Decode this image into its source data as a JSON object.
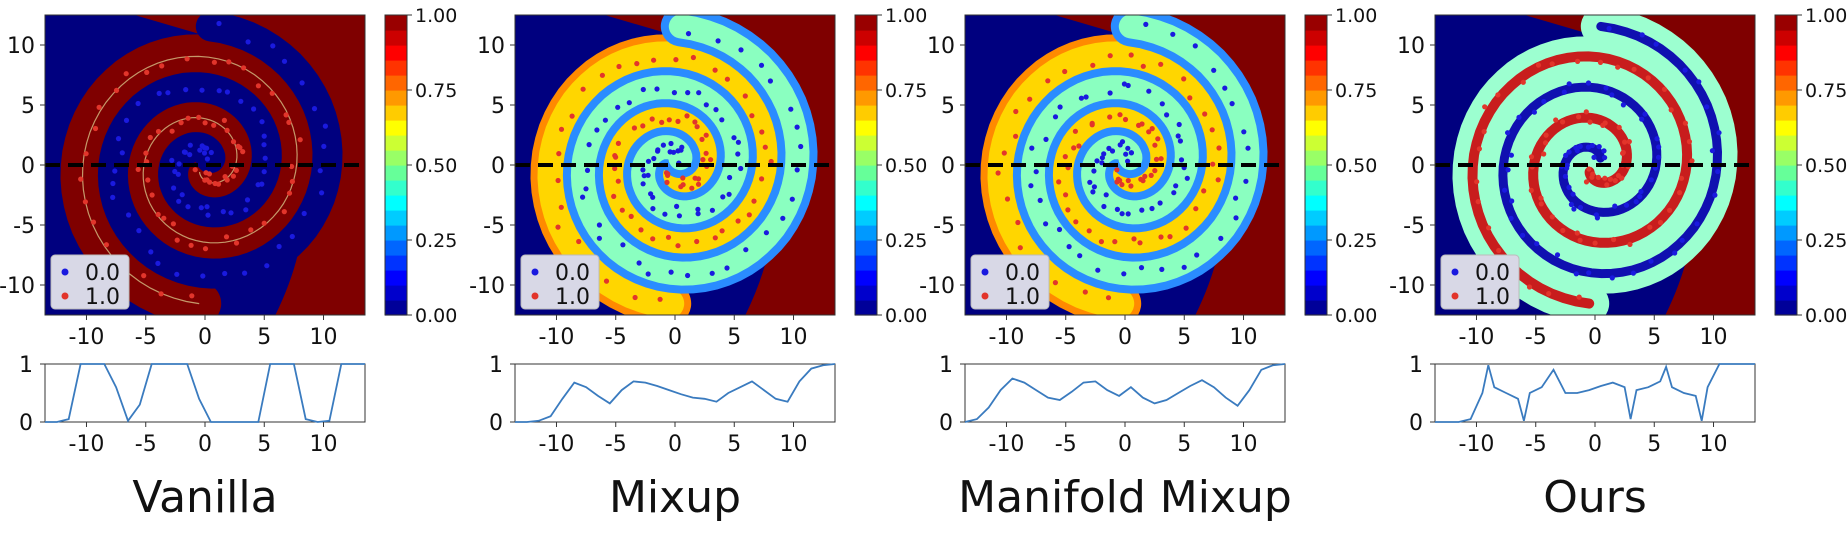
{
  "chart_data": [
    {
      "type": "heatmap",
      "title": "Vanilla",
      "pattern": "sharp",
      "xlim": [
        -13.5,
        13.5
      ],
      "ylim": [
        -12.5,
        12.5
      ],
      "xticks": [
        "-10",
        "-5",
        "0",
        "5",
        "10"
      ],
      "yticks": [
        "10",
        "5",
        "0",
        "-5",
        "-10"
      ],
      "colorbar": {
        "min": 0,
        "max": 1,
        "ticks": [
          "1.00",
          "0.75",
          "0.50",
          "0.25",
          "0.00"
        ],
        "colormap": "jet"
      },
      "legend": {
        "position": "lower-left",
        "entries": [
          {
            "label": "0.0",
            "color": "#1a1adf"
          },
          {
            "label": "1.0",
            "color": "#e2352b"
          }
        ]
      },
      "dashed_line_y": 0,
      "profile": {
        "ylim": [
          0,
          1
        ],
        "yticks": [
          "1",
          "0"
        ],
        "xticks": [
          "-10",
          "-5",
          "0",
          "5",
          "10"
        ],
        "x": [
          -13.5,
          -12.5,
          -11.5,
          -10.5,
          -9.5,
          -8.5,
          -7.5,
          -6.5,
          -5.5,
          -4.5,
          -3.5,
          -2.5,
          -1.5,
          -0.5,
          0.5,
          1.5,
          2.5,
          3.5,
          4.5,
          5.5,
          6.5,
          7.5,
          8.5,
          9.5,
          10.5,
          11.5,
          12.5,
          13.5
        ],
        "y": [
          0,
          0,
          0.05,
          1,
          1,
          1,
          0.6,
          0.02,
          0.3,
          1,
          1,
          1,
          1,
          0.4,
          0,
          0,
          0,
          0,
          0,
          1,
          1,
          1,
          0.05,
          0,
          0.02,
          1,
          1,
          1
        ]
      }
    },
    {
      "type": "heatmap",
      "title": "Mixup",
      "pattern": "smooth",
      "xlim": [
        -13.5,
        13.5
      ],
      "ylim": [
        -12.5,
        12.5
      ],
      "xticks": [
        "-10",
        "-5",
        "0",
        "5",
        "10"
      ],
      "yticks": [
        "10",
        "5",
        "0",
        "-5",
        "-10"
      ],
      "colorbar": {
        "min": 0,
        "max": 1,
        "ticks": [
          "1.00",
          "0.75",
          "0.50",
          "0.25",
          "0.00"
        ],
        "colormap": "jet"
      },
      "legend": {
        "position": "lower-left",
        "entries": [
          {
            "label": "0.0",
            "color": "#1a1adf"
          },
          {
            "label": "1.0",
            "color": "#e2352b"
          }
        ]
      },
      "dashed_line_y": 0,
      "profile": {
        "ylim": [
          0,
          1
        ],
        "yticks": [
          "1",
          "0"
        ],
        "xticks": [
          "-10",
          "-5",
          "0",
          "5",
          "10"
        ],
        "x": [
          -13.5,
          -12.5,
          -11.5,
          -10.5,
          -9.5,
          -8.5,
          -7.5,
          -6.5,
          -5.5,
          -4.5,
          -3.5,
          -2.5,
          -1.5,
          -0.5,
          0.5,
          1.5,
          2.5,
          3.5,
          4.5,
          5.5,
          6.5,
          7.5,
          8.5,
          9.5,
          10.5,
          11.5,
          12.5,
          13.5
        ],
        "y": [
          0,
          0,
          0.02,
          0.1,
          0.4,
          0.68,
          0.6,
          0.45,
          0.32,
          0.55,
          0.7,
          0.68,
          0.62,
          0.55,
          0.48,
          0.42,
          0.4,
          0.35,
          0.5,
          0.6,
          0.7,
          0.55,
          0.4,
          0.35,
          0.7,
          0.92,
          0.98,
          1
        ]
      }
    },
    {
      "type": "heatmap",
      "title": "Manifold Mixup",
      "pattern": "smooth",
      "xlim": [
        -13.5,
        13.5
      ],
      "ylim": [
        -12.5,
        12.5
      ],
      "xticks": [
        "-10",
        "-5",
        "0",
        "5",
        "10"
      ],
      "yticks": [
        "10",
        "5",
        "0",
        "-5",
        "-10"
      ],
      "colorbar": {
        "min": 0,
        "max": 1,
        "ticks": [
          "1.00",
          "0.75",
          "0.50",
          "0.25",
          "0.00"
        ],
        "colormap": "jet"
      },
      "legend": {
        "position": "lower-left",
        "entries": [
          {
            "label": "0.0",
            "color": "#1a1adf"
          },
          {
            "label": "1.0",
            "color": "#e2352b"
          }
        ]
      },
      "dashed_line_y": 0,
      "profile": {
        "ylim": [
          0,
          1
        ],
        "yticks": [
          "1",
          "0"
        ],
        "xticks": [
          "-10",
          "-5",
          "0",
          "5",
          "10"
        ],
        "x": [
          -13.5,
          -12.5,
          -11.5,
          -10.5,
          -9.5,
          -8.5,
          -7.5,
          -6.5,
          -5.5,
          -4.5,
          -3.5,
          -2.5,
          -1.5,
          -0.5,
          0.5,
          1.5,
          2.5,
          3.5,
          4.5,
          5.5,
          6.5,
          7.5,
          8.5,
          9.5,
          10.5,
          11.5,
          12.5,
          13.5
        ],
        "y": [
          0,
          0.05,
          0.25,
          0.55,
          0.75,
          0.68,
          0.55,
          0.42,
          0.38,
          0.52,
          0.68,
          0.7,
          0.55,
          0.45,
          0.6,
          0.42,
          0.32,
          0.38,
          0.5,
          0.62,
          0.72,
          0.6,
          0.42,
          0.28,
          0.55,
          0.9,
          0.98,
          1
        ]
      }
    },
    {
      "type": "heatmap",
      "title": "Ours",
      "pattern": "banded",
      "xlim": [
        -13.5,
        13.5
      ],
      "ylim": [
        -12.5,
        12.5
      ],
      "xticks": [
        "-10",
        "-5",
        "0",
        "5",
        "10"
      ],
      "yticks": [
        "10",
        "5",
        "0",
        "-5",
        "-10"
      ],
      "colorbar": {
        "min": 0,
        "max": 1,
        "ticks": [
          "1.00",
          "0.75",
          "0.50",
          "0.25",
          "0.00"
        ],
        "colormap": "jet"
      },
      "legend": {
        "position": "lower-left",
        "entries": [
          {
            "label": "0.0",
            "color": "#1a1adf"
          },
          {
            "label": "1.0",
            "color": "#e2352b"
          }
        ]
      },
      "dashed_line_y": 0,
      "profile": {
        "ylim": [
          0,
          1
        ],
        "yticks": [
          "1",
          "0"
        ],
        "xticks": [
          "-10",
          "-5",
          "0",
          "5",
          "10"
        ],
        "x": [
          -13.5,
          -12.5,
          -11.5,
          -10.5,
          -9.5,
          -9,
          -8.5,
          -7.5,
          -6.5,
          -6,
          -5.5,
          -4.5,
          -3.5,
          -2.5,
          -1.5,
          -0.5,
          0.5,
          1.5,
          2.5,
          3,
          3.5,
          4.5,
          5.5,
          6,
          6.5,
          7.5,
          8.5,
          9,
          9.5,
          10.5,
          11.5,
          12.5,
          13.5
        ],
        "y": [
          0,
          0,
          0,
          0.05,
          0.5,
          0.98,
          0.6,
          0.5,
          0.4,
          0.02,
          0.5,
          0.6,
          0.9,
          0.5,
          0.5,
          0.55,
          0.62,
          0.68,
          0.6,
          0.05,
          0.55,
          0.6,
          0.7,
          0.95,
          0.6,
          0.5,
          0.45,
          0.02,
          0.6,
          1,
          1,
          1,
          1
        ]
      }
    }
  ]
}
